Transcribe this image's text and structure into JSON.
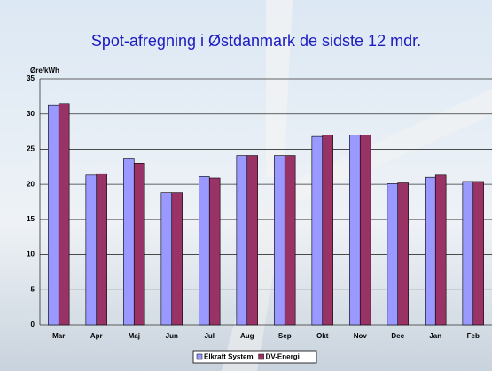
{
  "chart_data": {
    "type": "bar",
    "title": "Spot-afregning i Østdanmark de sidste 12 mdr.",
    "y_label": "Øre/kWh",
    "categories": [
      "Mar",
      "Apr",
      "Maj",
      "Jun",
      "Jul",
      "Aug",
      "Sep",
      "Okt",
      "Nov",
      "Dec",
      "Jan",
      "Feb"
    ],
    "series": [
      {
        "name": "Elkraft System",
        "color": "#9999ff",
        "values": [
          31.2,
          21.3,
          23.6,
          18.8,
          21.1,
          24.1,
          24.1,
          26.8,
          27.0,
          20.1,
          21.0,
          20.4
        ]
      },
      {
        "name": "DV-Energi",
        "color": "#993366",
        "values": [
          31.5,
          21.5,
          23.0,
          18.8,
          20.9,
          24.1,
          24.1,
          27.0,
          27.0,
          20.2,
          21.3,
          20.4
        ]
      }
    ],
    "ylim": [
      0,
      35
    ],
    "yticks": [
      0,
      5,
      10,
      15,
      20,
      25,
      30,
      35
    ],
    "grid": true,
    "legend": "bottom"
  }
}
